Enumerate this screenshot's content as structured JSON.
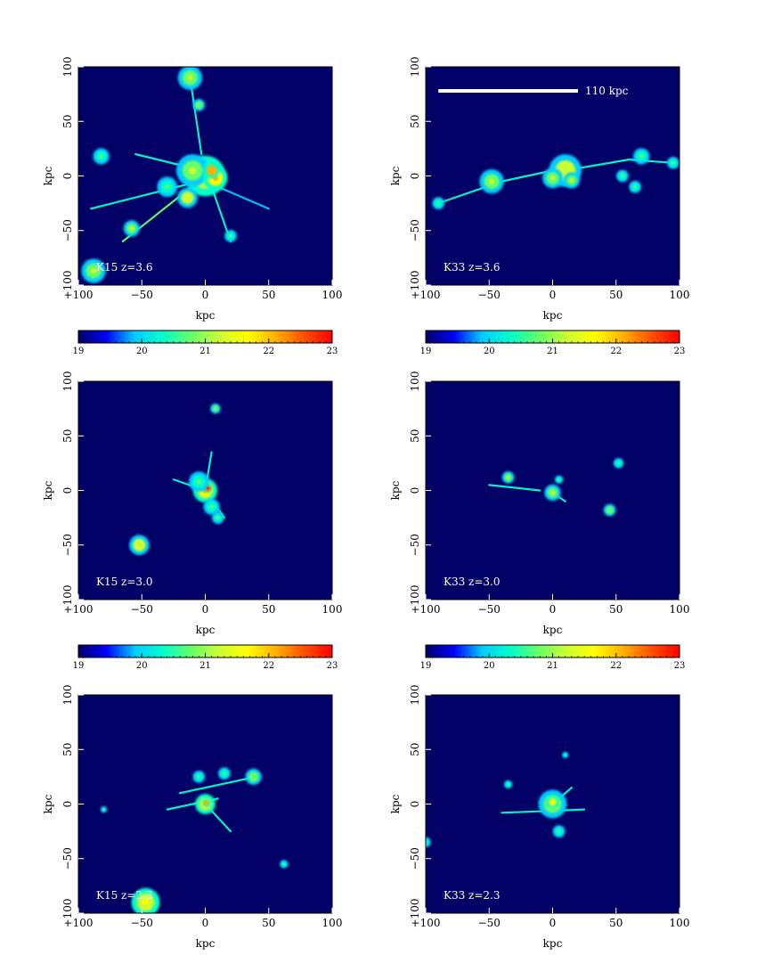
{
  "colormap": [
    "#000066",
    "#0000ff",
    "#00ccff",
    "#00ffcc",
    "#66ff66",
    "#ccff33",
    "#ffff00",
    "#ffb000",
    "#ff5000",
    "#ff0000"
  ],
  "panel_background": "#000066",
  "colorbars": [
    {
      "ticks": [
        19,
        20,
        21,
        22,
        23
      ],
      "tick_labels": [
        "19",
        "20",
        "21",
        "22",
        "23"
      ],
      "range": [
        19,
        23
      ]
    }
  ],
  "chart_data": [
    {
      "type": "heatmap",
      "label": "K15 z=3.6",
      "xlabel": "kpc",
      "ylabel": "kpc",
      "xlim": [
        -100,
        100
      ],
      "ylim": [
        -100,
        100
      ],
      "x_ticks": [
        "−100",
        "−50",
        "0",
        "50",
        "100"
      ],
      "y_ticks": [
        "−100",
        "−50",
        "0",
        "50",
        "100"
      ],
      "colorbar": true,
      "scale_bar": null,
      "blobs": [
        {
          "x": 0,
          "y": 0,
          "r": 10,
          "v": 21.5
        },
        {
          "x": -10,
          "y": 5,
          "r": 8,
          "v": 21.0
        },
        {
          "x": 8,
          "y": -2,
          "r": 6,
          "v": 22.0
        },
        {
          "x": 5,
          "y": 5,
          "r": 4,
          "v": 22.3
        },
        {
          "x": -14,
          "y": -20,
          "r": 5,
          "v": 21.3
        },
        {
          "x": -12,
          "y": 90,
          "r": 6,
          "v": 21.0
        },
        {
          "x": -5,
          "y": 65,
          "r": 3,
          "v": 20.9
        },
        {
          "x": -82,
          "y": 18,
          "r": 4,
          "v": 20.8
        },
        {
          "x": -88,
          "y": -87,
          "r": 6,
          "v": 21.2
        },
        {
          "x": -58,
          "y": -48,
          "r": 4,
          "v": 21.0
        },
        {
          "x": -30,
          "y": -10,
          "r": 5,
          "v": 20.6
        },
        {
          "x": 20,
          "y": -55,
          "r": 3,
          "v": 20.8
        }
      ],
      "filaments": [
        {
          "x1": -12,
          "y1": 90,
          "x2": -3,
          "y2": 20,
          "v": 20.5
        },
        {
          "x1": 0,
          "y1": 0,
          "x2": -65,
          "y2": -60,
          "v": 20.6
        },
        {
          "x1": -5,
          "y1": -5,
          "x2": -90,
          "y2": -30,
          "v": 20.3
        },
        {
          "x1": 5,
          "y1": -10,
          "x2": 20,
          "y2": -60,
          "v": 20.3
        },
        {
          "x1": 10,
          "y1": -10,
          "x2": 50,
          "y2": -30,
          "v": 20.1
        },
        {
          "x1": -20,
          "y1": 10,
          "x2": -55,
          "y2": 20,
          "v": 20.2
        }
      ]
    },
    {
      "type": "heatmap",
      "label": "K33 z=3.6",
      "xlabel": "kpc",
      "ylabel": "kpc",
      "xlim": [
        -100,
        100
      ],
      "ylim": [
        -100,
        100
      ],
      "x_ticks": [
        "−100",
        "−50",
        "0",
        "50",
        "100"
      ],
      "y_ticks": [
        "−100",
        "−50",
        "0",
        "50",
        "100"
      ],
      "colorbar": true,
      "scale_bar": {
        "label": "110 kpc",
        "x1": -90,
        "x2": 20,
        "y": 78
      },
      "blobs": [
        {
          "x": 10,
          "y": 5,
          "r": 8,
          "v": 21.3
        },
        {
          "x": 0,
          "y": -2,
          "r": 5,
          "v": 21.0
        },
        {
          "x": 15,
          "y": -4,
          "r": 4,
          "v": 21.2
        },
        {
          "x": -48,
          "y": -5,
          "r": 6,
          "v": 21.0
        },
        {
          "x": -90,
          "y": -25,
          "r": 3,
          "v": 20.8
        },
        {
          "x": 70,
          "y": 18,
          "r": 4,
          "v": 20.8
        },
        {
          "x": 55,
          "y": 0,
          "r": 3,
          "v": 20.8
        },
        {
          "x": 65,
          "y": -10,
          "r": 3,
          "v": 20.7
        },
        {
          "x": 95,
          "y": 12,
          "r": 3,
          "v": 20.7
        }
      ],
      "filaments": [
        {
          "x1": -90,
          "y1": -25,
          "x2": -40,
          "y2": -5,
          "v": 20.4
        },
        {
          "x1": -40,
          "y1": -5,
          "x2": 0,
          "y2": 5,
          "v": 20.5
        },
        {
          "x1": 10,
          "y1": 5,
          "x2": 60,
          "y2": 15,
          "v": 20.4
        },
        {
          "x1": 60,
          "y1": 15,
          "x2": 95,
          "y2": 12,
          "v": 20.3
        }
      ]
    },
    {
      "type": "heatmap",
      "label": "K15 z=3.0",
      "xlabel": "kpc",
      "ylabel": "kpc",
      "xlim": [
        -100,
        100
      ],
      "ylim": [
        -100,
        100
      ],
      "x_ticks": [
        "−100",
        "−50",
        "0",
        "50",
        "100"
      ],
      "y_ticks": [
        "−100",
        "−50",
        "0",
        "50",
        "100"
      ],
      "colorbar": true,
      "scale_bar": null,
      "blobs": [
        {
          "x": 0,
          "y": 0,
          "r": 6,
          "v": 22.0
        },
        {
          "x": 2,
          "y": 2,
          "r": 2.5,
          "v": 22.8
        },
        {
          "x": -5,
          "y": 8,
          "r": 5,
          "v": 20.8
        },
        {
          "x": 5,
          "y": -15,
          "r": 4,
          "v": 20.8
        },
        {
          "x": -52,
          "y": -50,
          "r": 5,
          "v": 21.3
        },
        {
          "x": 8,
          "y": 75,
          "r": 2.5,
          "v": 20.9
        },
        {
          "x": 10,
          "y": -25,
          "r": 3,
          "v": 20.7
        }
      ],
      "filaments": [
        {
          "x1": -25,
          "y1": 10,
          "x2": 0,
          "y2": 0,
          "v": 20.5
        },
        {
          "x1": 0,
          "y1": 0,
          "x2": 15,
          "y2": -25,
          "v": 20.3
        },
        {
          "x1": 0,
          "y1": 0,
          "x2": 5,
          "y2": 35,
          "v": 20.3
        }
      ]
    },
    {
      "type": "heatmap",
      "label": "K33 z=3.0",
      "xlabel": "kpc",
      "ylabel": "kpc",
      "xlim": [
        -100,
        100
      ],
      "ylim": [
        -100,
        100
      ],
      "x_ticks": [
        "−100",
        "−50",
        "0",
        "50",
        "100"
      ],
      "y_ticks": [
        "−100",
        "−50",
        "0",
        "50",
        "100"
      ],
      "colorbar": true,
      "scale_bar": null,
      "blobs": [
        {
          "x": 0,
          "y": -2,
          "r": 4,
          "v": 21.0
        },
        {
          "x": -35,
          "y": 12,
          "r": 3,
          "v": 21.0
        },
        {
          "x": 45,
          "y": -18,
          "r": 3,
          "v": 20.9
        },
        {
          "x": 52,
          "y": 25,
          "r": 2.5,
          "v": 20.8
        },
        {
          "x": 5,
          "y": 10,
          "r": 2,
          "v": 20.6
        }
      ],
      "filaments": [
        {
          "x1": -50,
          "y1": 5,
          "x2": -10,
          "y2": 0,
          "v": 20.2
        },
        {
          "x1": 0,
          "y1": -2,
          "x2": 10,
          "y2": -10,
          "v": 20.3
        }
      ]
    },
    {
      "type": "heatmap",
      "label": "K15 z=2.3",
      "xlabel": "kpc",
      "ylabel": "kpc",
      "xlim": [
        -100,
        100
      ],
      "ylim": [
        -100,
        100
      ],
      "x_ticks": [
        "−100",
        "−50",
        "0",
        "50",
        "100"
      ],
      "y_ticks": [
        "−100",
        "−50",
        "0",
        "50",
        "100"
      ],
      "colorbar": false,
      "scale_bar": null,
      "blobs": [
        {
          "x": 0,
          "y": 0,
          "r": 5,
          "v": 21.5
        },
        {
          "x": 1,
          "y": 1,
          "r": 2,
          "v": 22.3
        },
        {
          "x": -47,
          "y": -90,
          "r": 7,
          "v": 21.5
        },
        {
          "x": 38,
          "y": 25,
          "r": 4,
          "v": 20.9
        },
        {
          "x": 15,
          "y": 28,
          "r": 3,
          "v": 20.8
        },
        {
          "x": -5,
          "y": 25,
          "r": 3,
          "v": 20.6
        },
        {
          "x": 62,
          "y": -55,
          "r": 2,
          "v": 20.7
        },
        {
          "x": -80,
          "y": -5,
          "r": 1.5,
          "v": 20.6
        }
      ],
      "filaments": [
        {
          "x1": -20,
          "y1": 10,
          "x2": 40,
          "y2": 25,
          "v": 20.3
        },
        {
          "x1": 0,
          "y1": 0,
          "x2": 20,
          "y2": -25,
          "v": 20.2
        },
        {
          "x1": -30,
          "y1": -5,
          "x2": 10,
          "y2": 5,
          "v": 20.2
        }
      ]
    },
    {
      "type": "heatmap",
      "label": "K33 z=2.3",
      "xlabel": "kpc",
      "ylabel": "kpc",
      "xlim": [
        -100,
        100
      ],
      "ylim": [
        -100,
        100
      ],
      "x_ticks": [
        "−100",
        "−50",
        "0",
        "50",
        "100"
      ],
      "y_ticks": [
        "−100",
        "−50",
        "0",
        "50",
        "100"
      ],
      "colorbar": false,
      "scale_bar": null,
      "blobs": [
        {
          "x": 0,
          "y": 0,
          "r": 7,
          "v": 21.2
        },
        {
          "x": 0,
          "y": 2,
          "r": 3,
          "v": 21.8
        },
        {
          "x": 5,
          "y": -25,
          "r": 3,
          "v": 20.8
        },
        {
          "x": -35,
          "y": 18,
          "r": 2,
          "v": 20.6
        },
        {
          "x": -100,
          "y": -35,
          "r": 2.5,
          "v": 20.8
        },
        {
          "x": 10,
          "y": 45,
          "r": 1.5,
          "v": 20.5
        }
      ],
      "filaments": [
        {
          "x1": -40,
          "y1": -8,
          "x2": 25,
          "y2": -5,
          "v": 20.3
        },
        {
          "x1": 0,
          "y1": 0,
          "x2": 15,
          "y2": 15,
          "v": 20.2
        }
      ]
    }
  ]
}
